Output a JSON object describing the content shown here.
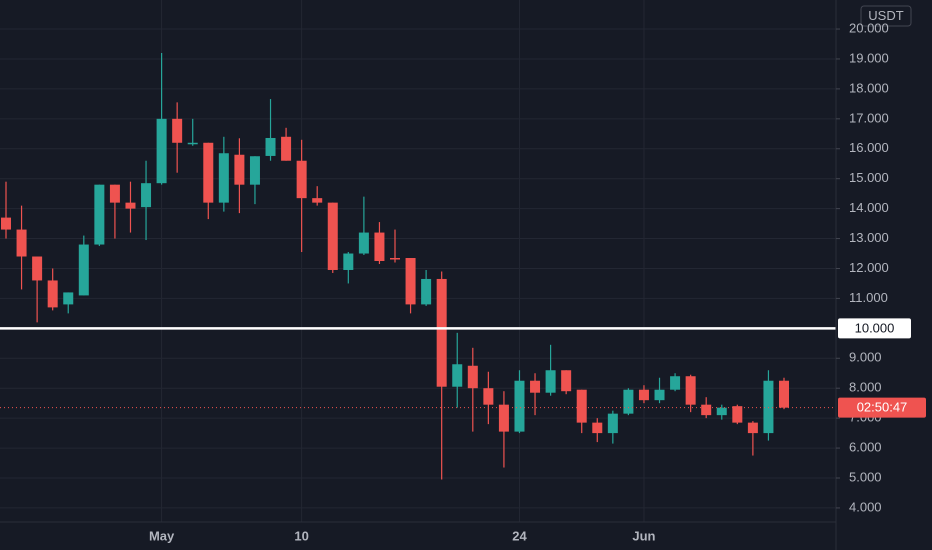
{
  "chart_data": {
    "type": "candlestick",
    "currency": "USDT",
    "countdown": "02:50:47",
    "hline": {
      "value": 10,
      "label": "10.000",
      "color": "#ffffff"
    },
    "up_color": "#26a69a",
    "down_color": "#ef5350",
    "grid": true,
    "categories": [
      null,
      null,
      null,
      null,
      null,
      null,
      null,
      null,
      null,
      null,
      "May",
      null,
      null,
      null,
      null,
      null,
      null,
      null,
      null,
      "10",
      null,
      null,
      null,
      null,
      null,
      null,
      null,
      null,
      null,
      null,
      null,
      null,
      null,
      "24",
      null,
      null,
      null,
      null,
      null,
      null,
      null,
      "Jun",
      null,
      null,
      null,
      null,
      null,
      null,
      null,
      null,
      null
    ],
    "open": [
      13.7,
      13.3,
      12.4,
      11.6,
      10.8,
      11.1,
      12.8,
      14.8,
      14.2,
      14.05,
      14.85,
      17.0,
      16.2,
      16.2,
      14.2,
      15.8,
      14.8,
      15.76,
      16.4,
      15.6,
      14.35,
      14.2,
      11.95,
      12.5,
      13.2,
      12.35,
      12.35,
      10.8,
      11.65,
      8.05,
      8.75,
      8.0,
      7.45,
      6.55,
      8.25,
      7.85,
      8.6,
      7.95,
      6.85,
      6.5,
      7.15,
      7.95,
      7.6,
      7.95,
      8.4,
      7.45,
      7.1,
      7.4,
      6.85,
      6.5,
      8.25
    ],
    "high": [
      14.9,
      14.1,
      12.4,
      12.0,
      11.2,
      13.1,
      14.8,
      14.8,
      14.9,
      15.6,
      19.2,
      17.55,
      17.0,
      16.2,
      16.4,
      16.35,
      15.75,
      17.66,
      16.7,
      16.3,
      14.75,
      14.2,
      12.55,
      14.4,
      13.55,
      13.3,
      12.35,
      11.95,
      11.9,
      9.85,
      9.35,
      8.55,
      7.9,
      8.6,
      8.5,
      9.45,
      8.6,
      7.95,
      7.0,
      7.25,
      8.0,
      8.1,
      8.35,
      8.5,
      8.45,
      7.7,
      7.45,
      7.45,
      6.9,
      8.6,
      8.35
    ],
    "low": [
      13.0,
      11.3,
      10.2,
      10.6,
      10.5,
      11.1,
      12.75,
      13.0,
      13.2,
      12.95,
      14.8,
      15.2,
      16.1,
      13.65,
      13.9,
      13.85,
      14.15,
      15.6,
      15.6,
      12.55,
      14.1,
      11.85,
      11.5,
      12.45,
      12.15,
      12.2,
      10.5,
      10.75,
      4.95,
      7.35,
      6.55,
      6.8,
      5.35,
      6.5,
      7.1,
      7.75,
      7.8,
      6.5,
      6.2,
      6.15,
      7.1,
      7.5,
      7.5,
      7.9,
      7.2,
      7.0,
      6.95,
      6.8,
      5.75,
      6.25,
      7.3
    ],
    "close": [
      13.3,
      12.4,
      11.6,
      10.7,
      11.2,
      12.8,
      14.8,
      14.2,
      14.0,
      14.85,
      17.0,
      16.2,
      16.2,
      14.2,
      15.85,
      14.8,
      15.75,
      16.36,
      15.6,
      14.35,
      14.2,
      11.95,
      12.5,
      13.2,
      12.25,
      12.3,
      10.8,
      11.65,
      8.05,
      8.8,
      8.0,
      7.45,
      6.55,
      8.25,
      7.85,
      8.6,
      7.9,
      6.85,
      6.5,
      7.15,
      7.95,
      7.6,
      7.95,
      8.4,
      7.45,
      7.1,
      7.35,
      6.85,
      6.5,
      8.25,
      7.35
    ],
    "ylim": [
      3.53,
      20.97
    ],
    "yticks": [
      {
        "value": 4,
        "label": "4.000"
      },
      {
        "value": 5,
        "label": "5.000"
      },
      {
        "value": 6,
        "label": "6.000"
      },
      {
        "value": 7,
        "label": "7.000"
      },
      {
        "value": 8,
        "label": "8.000"
      },
      {
        "value": 9,
        "label": "9.000"
      },
      {
        "value": 11,
        "label": "11.000"
      },
      {
        "value": 12,
        "label": "12.000"
      },
      {
        "value": 13,
        "label": "13.000"
      },
      {
        "value": 14,
        "label": "14.000"
      },
      {
        "value": 15,
        "label": "15.000"
      },
      {
        "value": 16,
        "label": "16.000"
      },
      {
        "value": 17,
        "label": "17.000"
      },
      {
        "value": 18,
        "label": "18.000"
      },
      {
        "value": 19,
        "label": "19.000"
      },
      {
        "value": 20,
        "label": "20.000"
      }
    ]
  }
}
